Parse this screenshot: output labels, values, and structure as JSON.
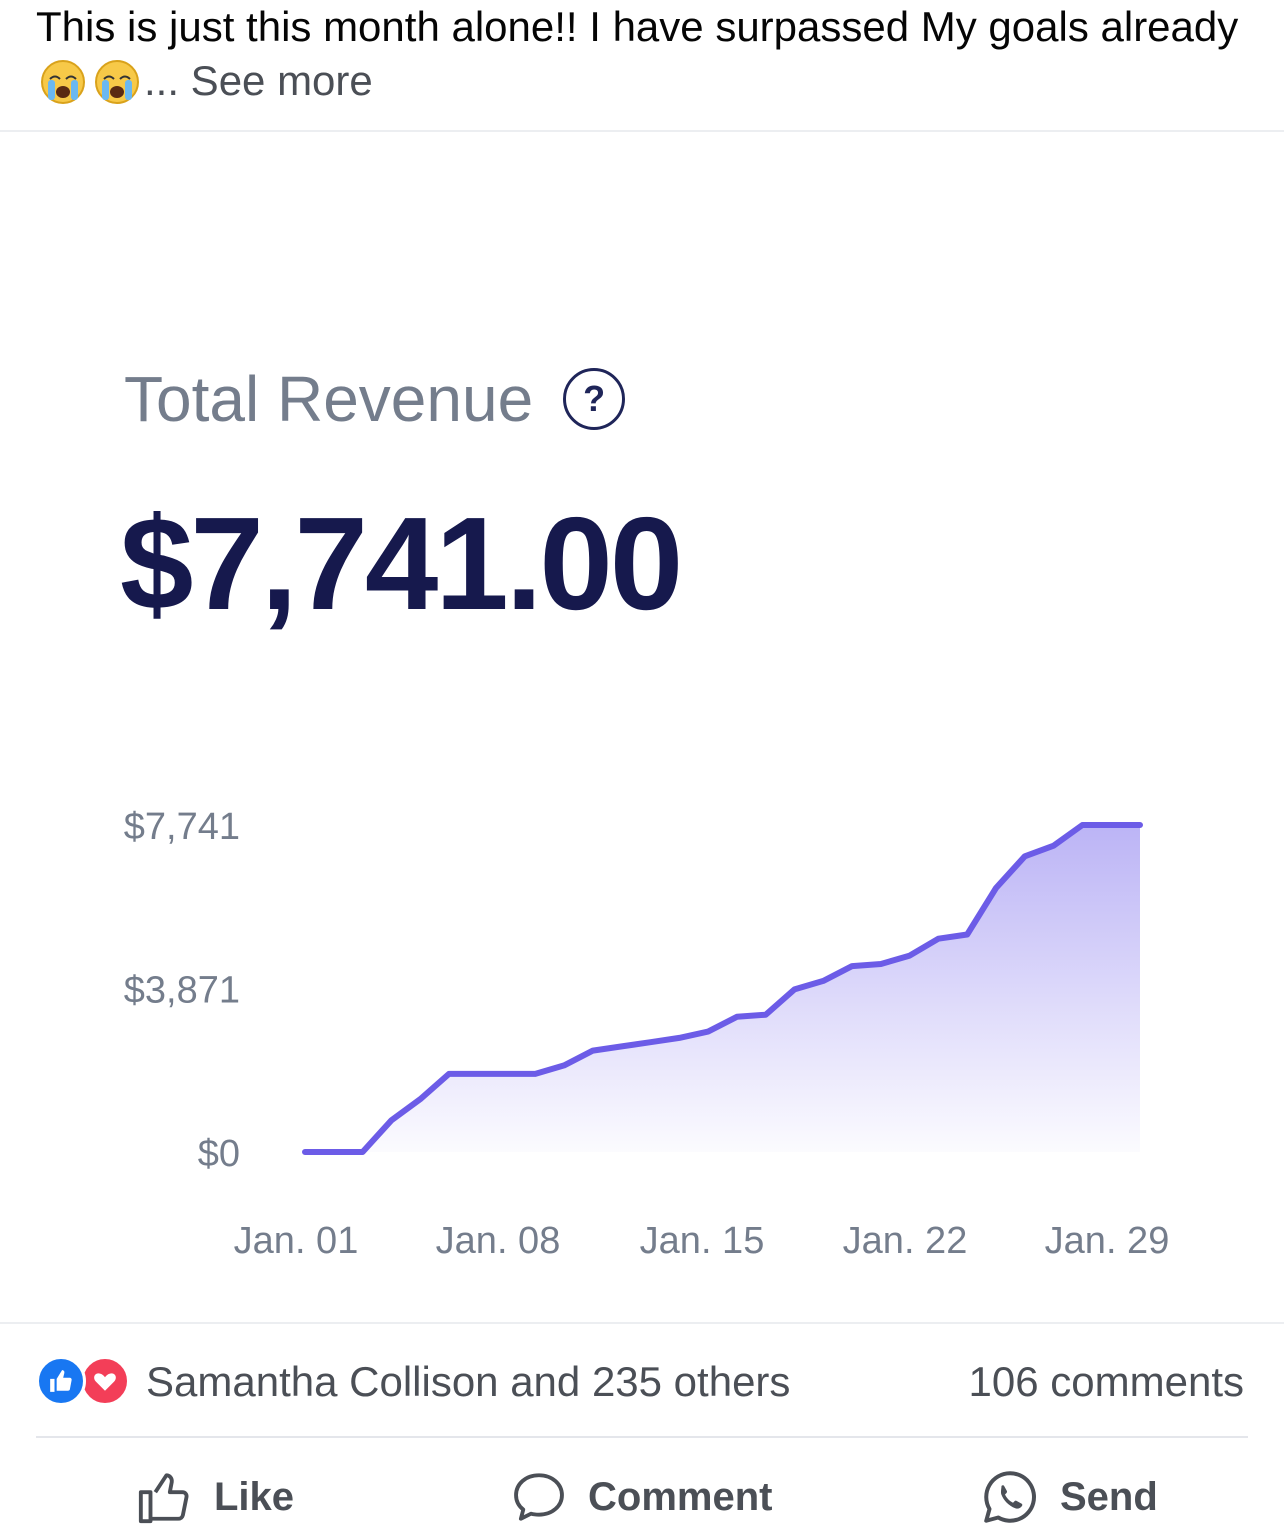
{
  "post": {
    "text": "This is just this month alone!! I have surpassed My goals already",
    "see_more": "... See more",
    "emojis": [
      "crying-face-icon",
      "crying-face-icon"
    ]
  },
  "card": {
    "title": "Total Revenue",
    "help_icon": "?",
    "total": "$7,741.00"
  },
  "chart_data": {
    "type": "area",
    "yticks": [
      "$7,741",
      "$3,871",
      "$0"
    ],
    "ylim": [
      0,
      7741
    ],
    "xticks": [
      "Jan. 01",
      "Jan. 08",
      "Jan. 15",
      "Jan. 22",
      "Jan. 29"
    ],
    "x": [
      "Jan. 01",
      "Jan. 02",
      "Jan. 03",
      "Jan. 04",
      "Jan. 05",
      "Jan. 06",
      "Jan. 07",
      "Jan. 08",
      "Jan. 09",
      "Jan. 10",
      "Jan. 11",
      "Jan. 12",
      "Jan. 13",
      "Jan. 14",
      "Jan. 15",
      "Jan. 16",
      "Jan. 17",
      "Jan. 18",
      "Jan. 19",
      "Jan. 20",
      "Jan. 21",
      "Jan. 22",
      "Jan. 23",
      "Jan. 24",
      "Jan. 25",
      "Jan. 26",
      "Jan. 27",
      "Jan. 28",
      "Jan. 29",
      "Jan. 30"
    ],
    "values": [
      0,
      0,
      0,
      750,
      1250,
      1850,
      1850,
      1850,
      1850,
      2050,
      2400,
      2500,
      2600,
      2700,
      2850,
      3200,
      3250,
      3850,
      4050,
      4400,
      4450,
      4650,
      5050,
      5150,
      6250,
      7000,
      7250,
      7741,
      7741,
      7741
    ],
    "grid": false,
    "legend": "none",
    "line_color": "#6c5ce7",
    "fill_color": "#b8b0f5"
  },
  "footer": {
    "reactions_text": "Samantha Collison and 235 others",
    "comments": "106 comments",
    "like": "Like",
    "comment": "Comment",
    "send": "Send",
    "like_color": "#1877f2",
    "love_color": "#f33e58"
  }
}
